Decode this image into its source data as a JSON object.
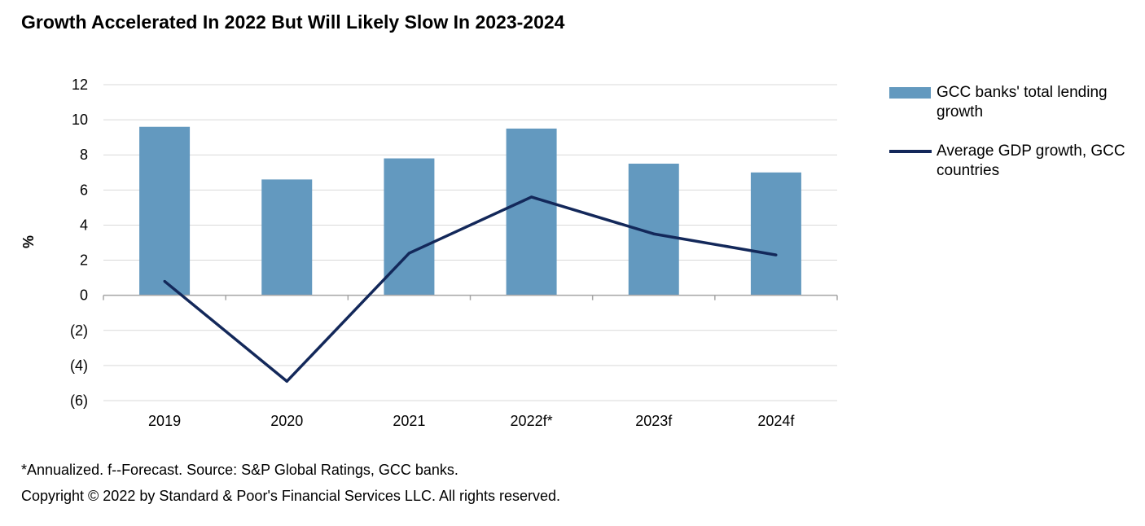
{
  "title": "Growth Accelerated In 2022 But Will Likely Slow In 2023-2024",
  "chart_data": {
    "type": "bar",
    "categories": [
      "2019",
      "2020",
      "2021",
      "2022f*",
      "2023f",
      "2024f"
    ],
    "series": [
      {
        "name": "GCC banks' total lending growth",
        "type": "bar",
        "color": "#6399bf",
        "values": [
          9.6,
          6.6,
          7.8,
          9.5,
          7.5,
          7.0
        ]
      },
      {
        "name": "Average GDP growth, GCC countries",
        "type": "line",
        "color": "#13285a",
        "values": [
          0.8,
          -4.9,
          2.4,
          5.6,
          3.5,
          2.3
        ]
      }
    ],
    "ylabel": "%",
    "xlabel": "",
    "ylim": [
      -6,
      12
    ],
    "yticks": [
      12,
      10,
      8,
      6,
      4,
      2,
      0,
      -2,
      -4,
      -6
    ],
    "ytick_labels": [
      "12",
      "10",
      "8",
      "6",
      "4",
      "2",
      "0",
      "(2)",
      "(4)",
      "(6)"
    ],
    "grid": true,
    "legend_position": "right"
  },
  "legend": {
    "items": [
      {
        "label": "GCC banks' total lending growth",
        "kind": "bar"
      },
      {
        "label": "Average GDP growth, GCC countries",
        "kind": "line"
      }
    ]
  },
  "footnotes": {
    "note": "*Annualized. f--Forecast. Source: S&P Global Ratings, GCC banks.",
    "copyright": "Copyright © 2022 by Standard & Poor's Financial Services LLC. All rights reserved."
  }
}
